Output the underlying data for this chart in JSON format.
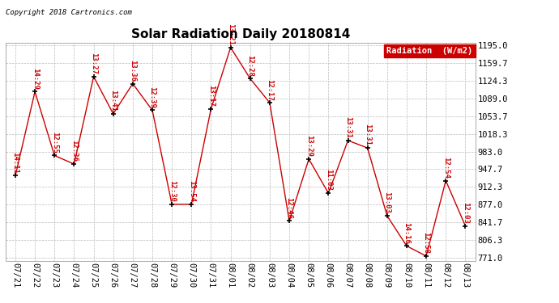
{
  "title": "Solar Radiation Daily 20180814",
  "copyright": "Copyright 2018 Cartronics.com",
  "legend_label": "Radiation  (W/m2)",
  "dates": [
    "07/21",
    "07/22",
    "07/23",
    "07/24",
    "07/25",
    "07/26",
    "07/27",
    "07/28",
    "07/29",
    "07/30",
    "07/31",
    "08/01",
    "08/02",
    "08/03",
    "08/04",
    "08/05",
    "08/06",
    "08/07",
    "08/08",
    "08/09",
    "08/10",
    "08/11",
    "08/12",
    "08/13"
  ],
  "values": [
    935,
    1102,
    975,
    958,
    1132,
    1058,
    1118,
    1065,
    878,
    878,
    1068,
    1190,
    1128,
    1080,
    845,
    968,
    900,
    1005,
    990,
    855,
    795,
    775,
    925,
    835
  ],
  "labels": [
    "14:11",
    "14:29",
    "12:55",
    "12:36",
    "13:27",
    "13:41",
    "13:36",
    "12:39",
    "12:30",
    "13:54",
    "13:17",
    "13:21",
    "12:28",
    "12:17",
    "12:46",
    "13:29",
    "11:03",
    "13:31",
    "13:31",
    "13:03",
    "14:16",
    "12:58",
    "12:54",
    "12:03"
  ],
  "line_color": "#cc0000",
  "label_color": "#cc0000",
  "marker_color": "#000000",
  "background_color": "#ffffff",
  "grid_color": "#bbbbbb",
  "ylim_min": 771.0,
  "ylim_max": 1195.0,
  "yticks": [
    771.0,
    806.3,
    841.7,
    877.0,
    912.3,
    947.7,
    983.0,
    1018.3,
    1053.7,
    1089.0,
    1124.3,
    1159.7,
    1195.0
  ],
  "title_fontsize": 11,
  "label_fontsize": 6.5,
  "copyright_fontsize": 6.5,
  "tick_fontsize": 7.5,
  "legend_bg_color": "#cc0000",
  "legend_text_color": "#ffffff"
}
